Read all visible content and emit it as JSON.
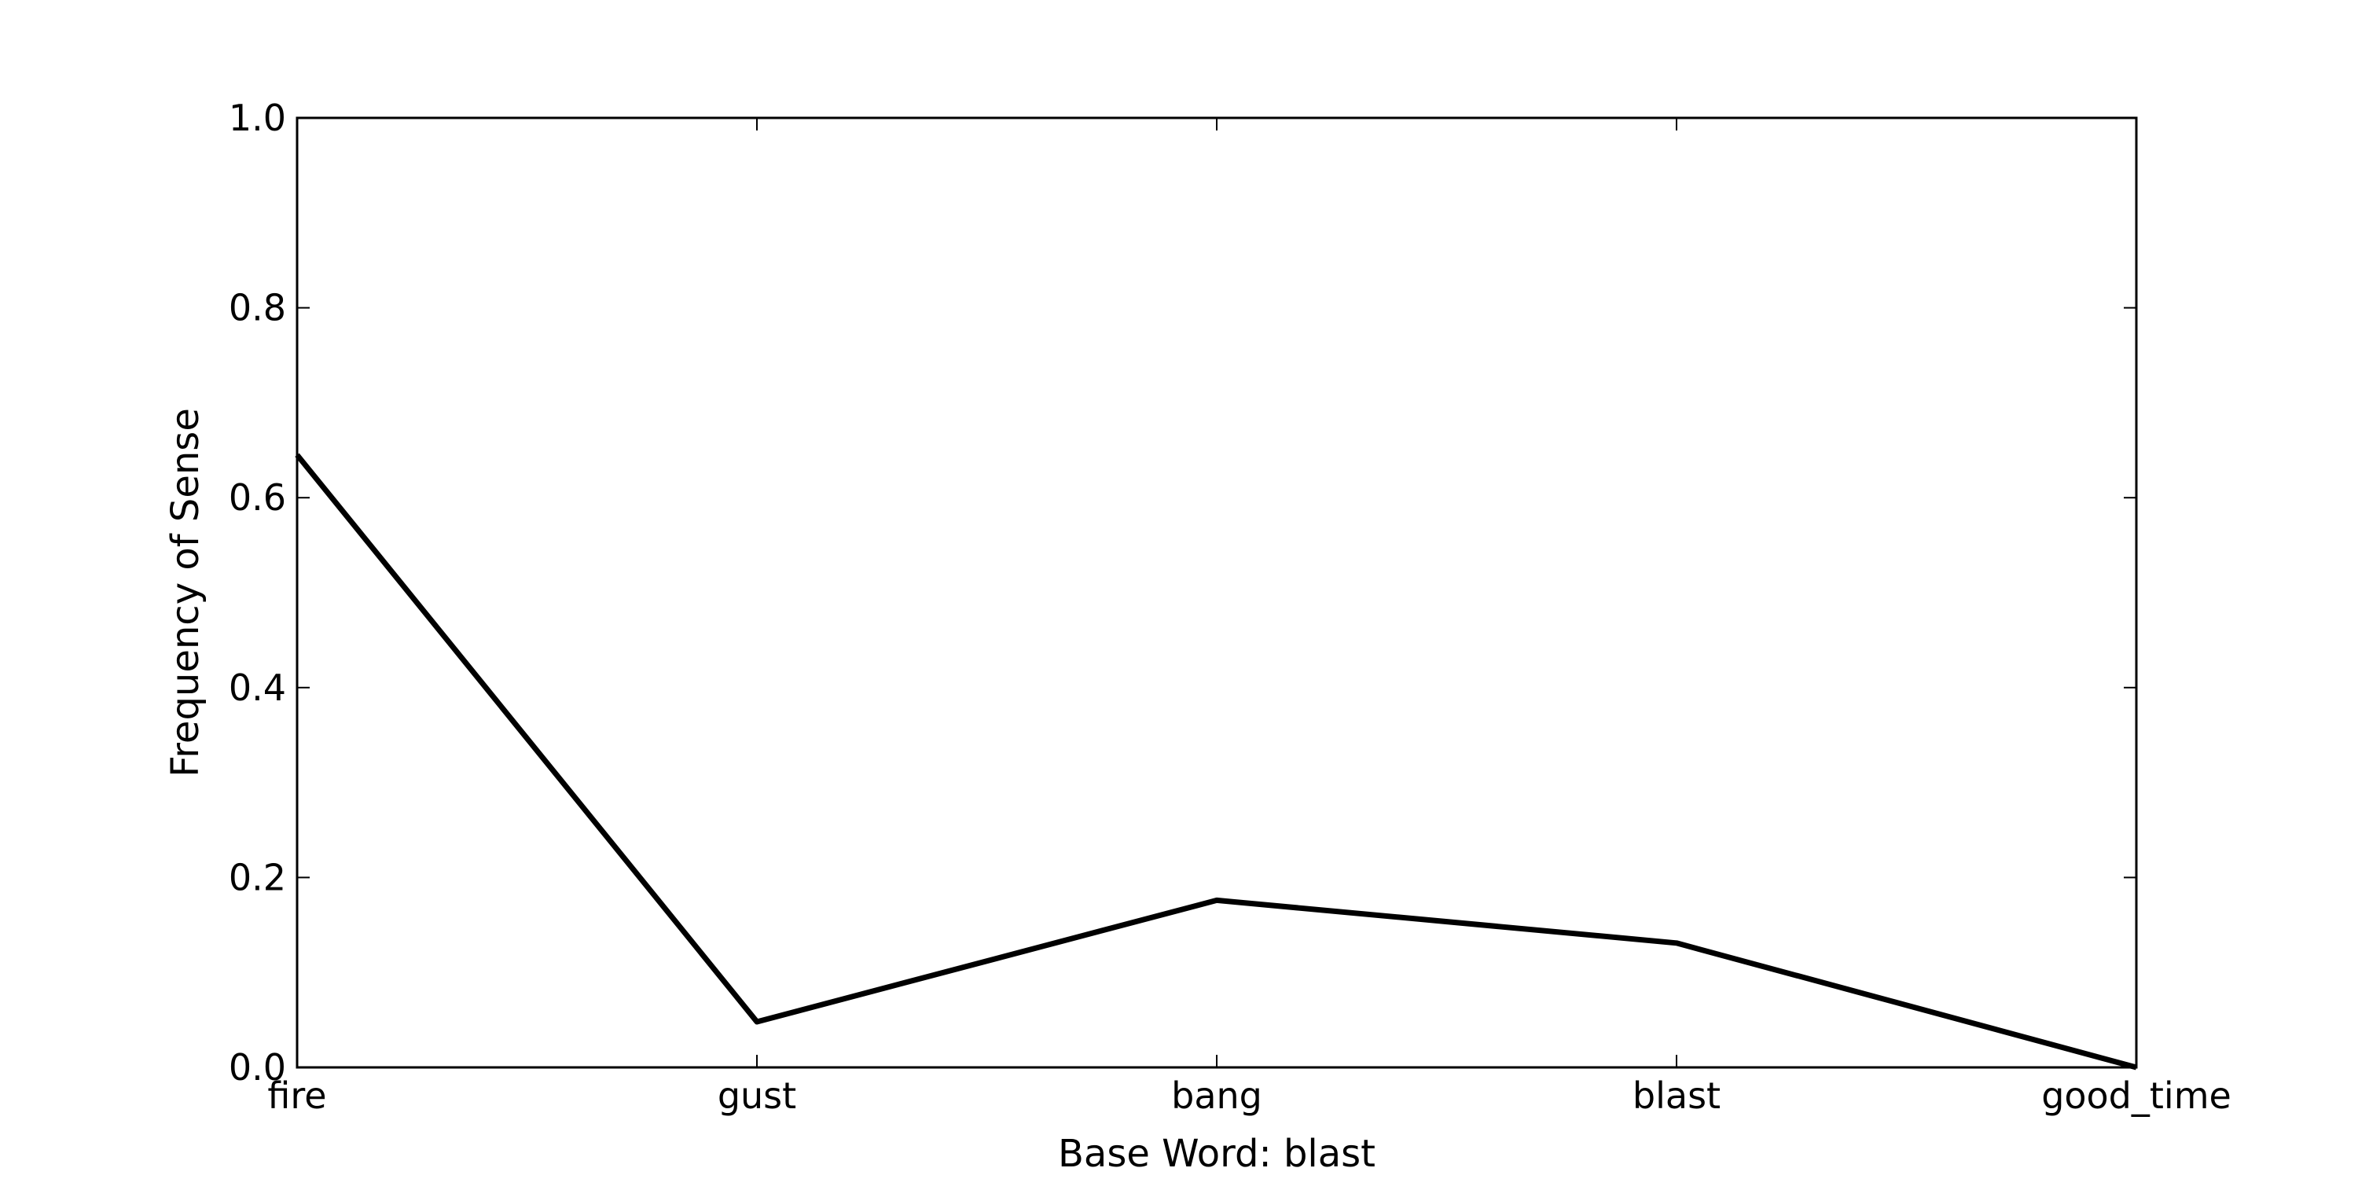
{
  "chart_data": {
    "type": "line",
    "title": "",
    "xlabel": "Base Word: blast",
    "ylabel": "Frequency of Sense",
    "categories": [
      "fire",
      "gust",
      "bang",
      "blast",
      "good_time"
    ],
    "series": [
      {
        "values": [
          0.645,
          0.048,
          0.176,
          0.131,
          0.0
        ]
      }
    ],
    "ylim": [
      0.0,
      1.0
    ],
    "yticks": [
      "0.0",
      "0.2",
      "0.4",
      "0.6",
      "0.8",
      "1.0"
    ],
    "grid": false,
    "line_color": "#000000"
  }
}
